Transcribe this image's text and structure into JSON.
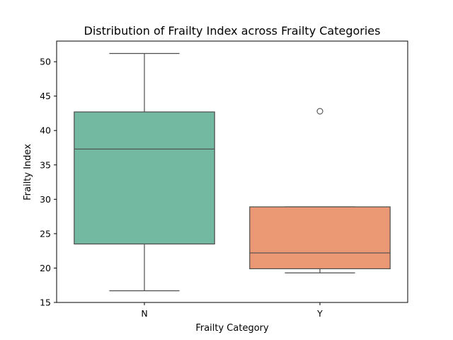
{
  "chart_data": {
    "type": "box",
    "title": "Distribution of Frailty Index across Frailty Categories",
    "xlabel": "Frailty Category",
    "ylabel": "Frailty Index",
    "ylim": [
      15,
      53
    ],
    "yticks": [
      15,
      20,
      25,
      30,
      35,
      40,
      45,
      50
    ],
    "grid": false,
    "categories": [
      "N",
      "Y"
    ],
    "boxes": [
      {
        "category": "N",
        "color": "#73b8a1",
        "whisker_low": 16.7,
        "q1": 23.5,
        "median": 37.3,
        "q3": 42.7,
        "whisker_high": 51.2,
        "outliers": []
      },
      {
        "category": "Y",
        "color": "#eb9874",
        "whisker_low": 19.3,
        "q1": 19.9,
        "median": 22.2,
        "q3": 28.9,
        "whisker_high": 28.9,
        "outliers": [
          42.8
        ]
      }
    ]
  }
}
